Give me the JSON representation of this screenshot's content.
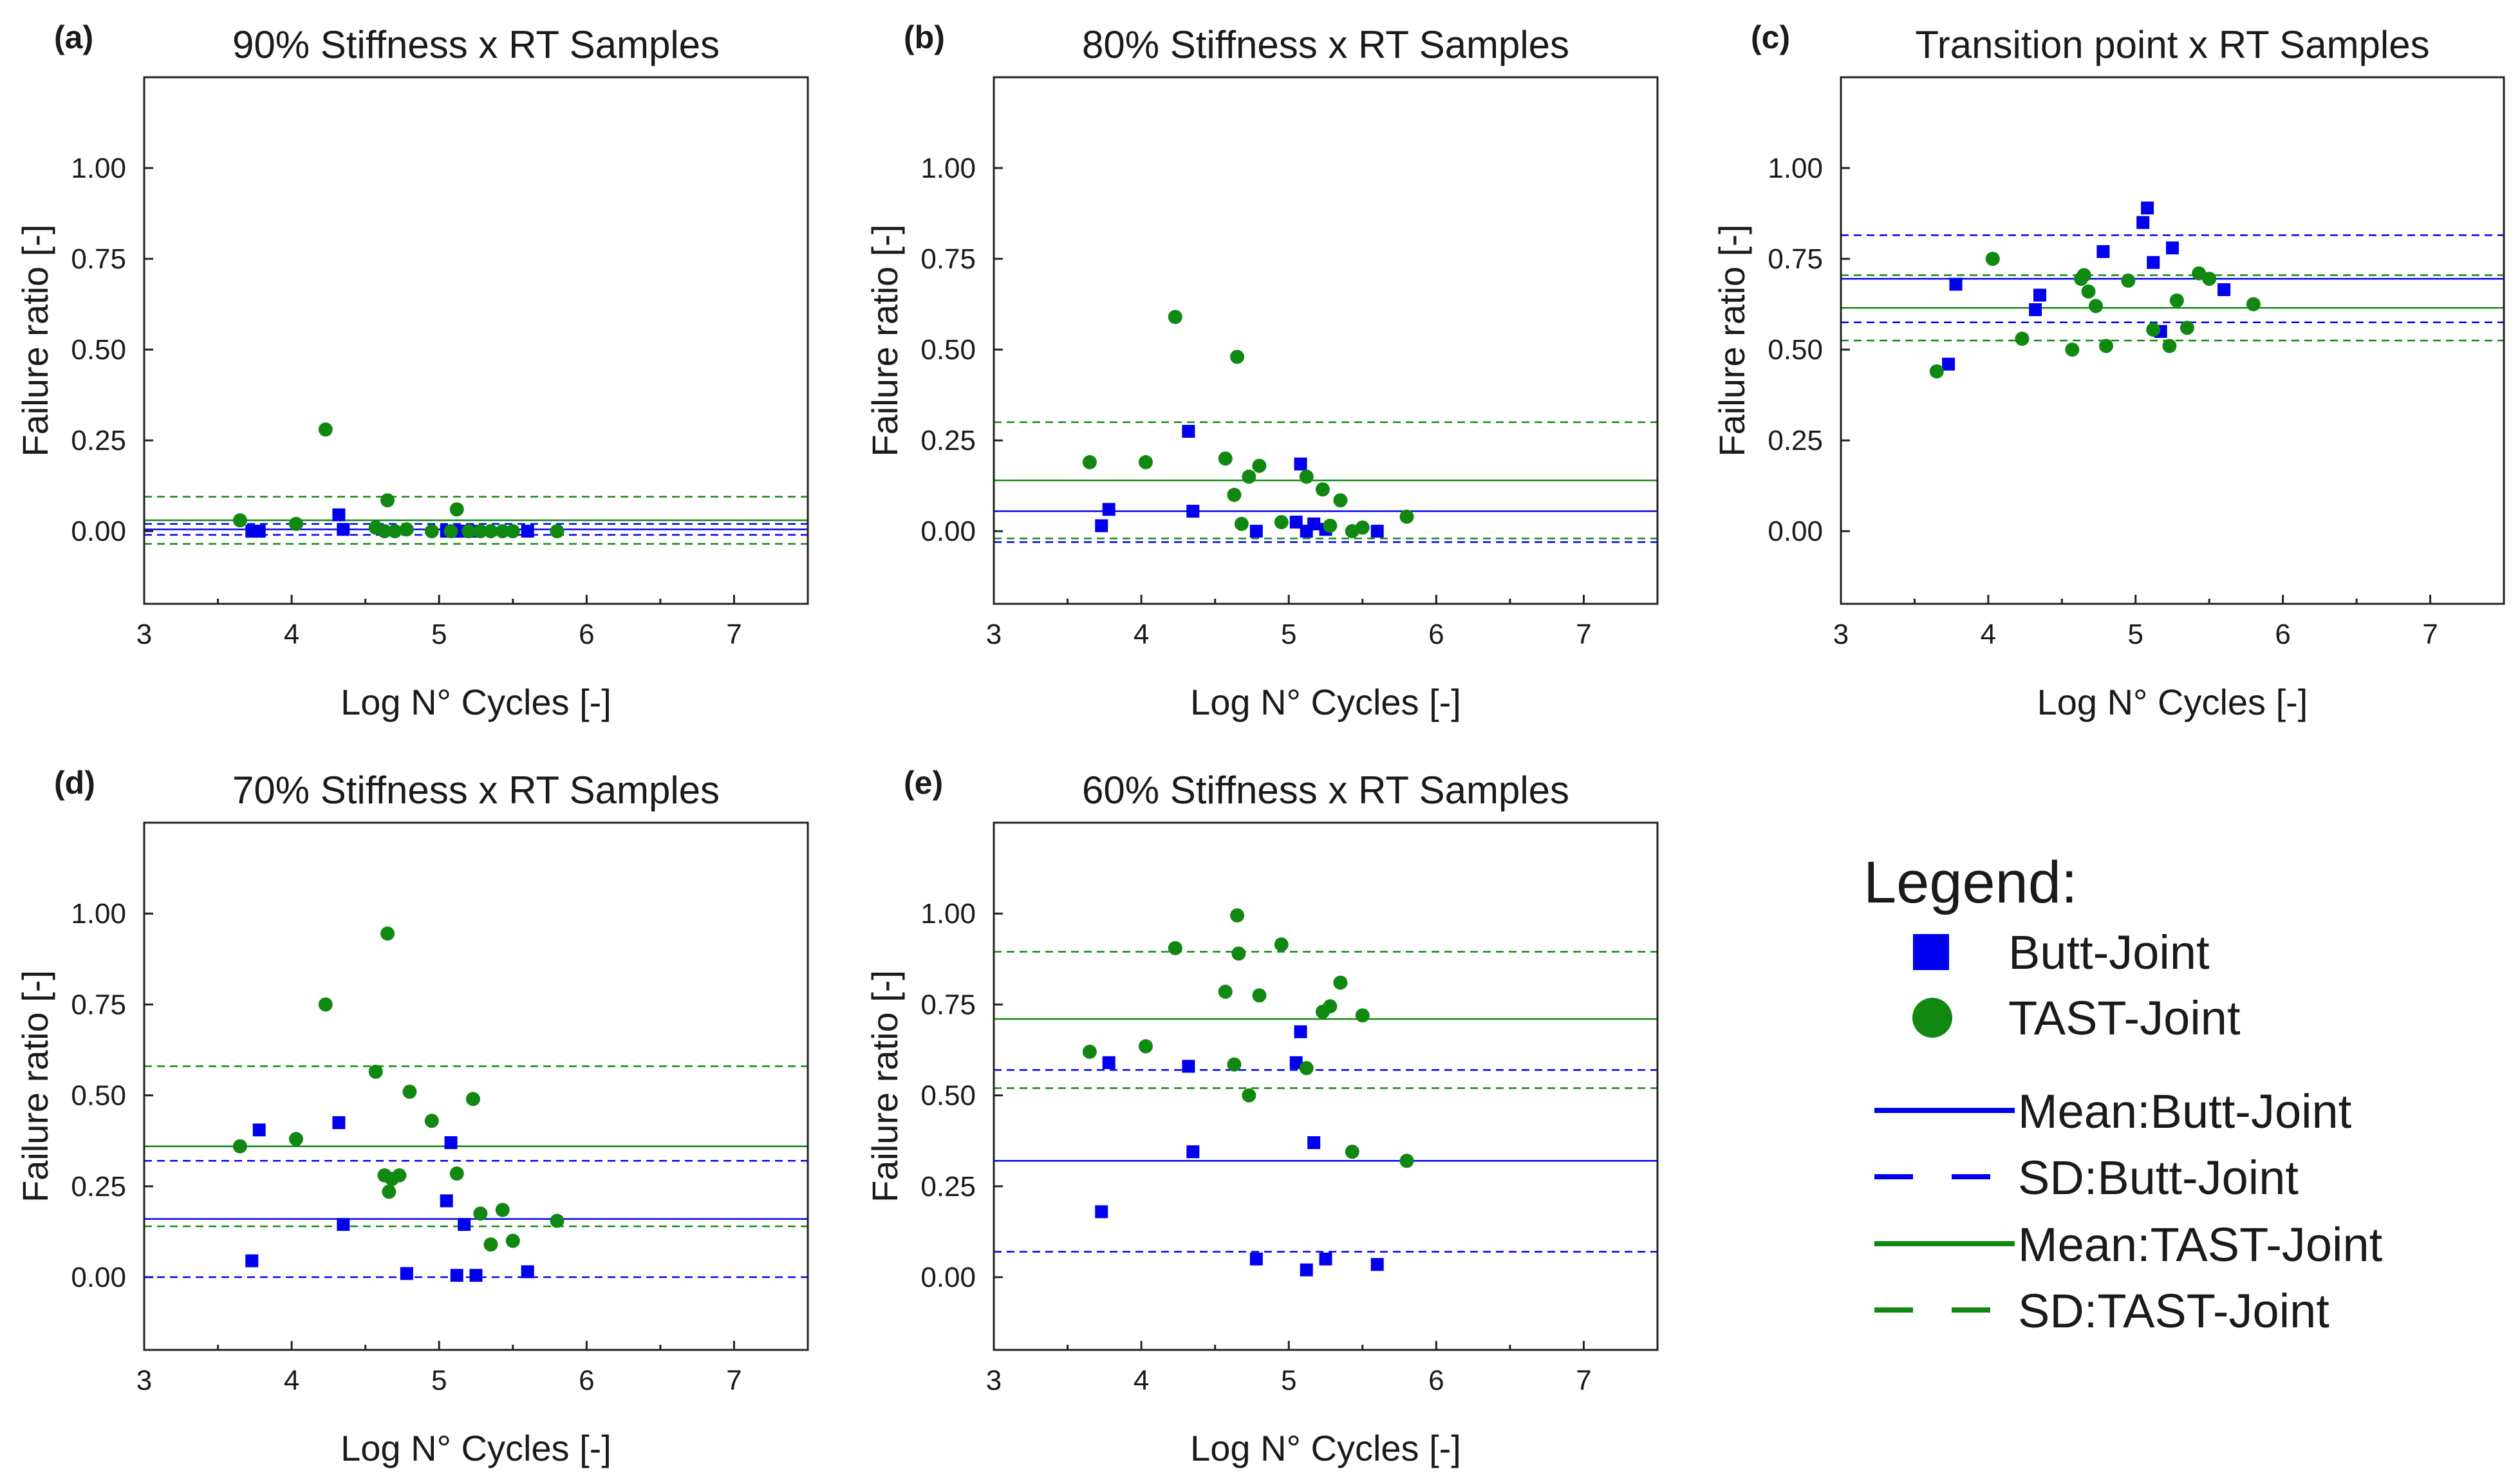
{
  "series_styles": {
    "butt": {
      "color": "#0000ee",
      "marker": "square"
    },
    "tast": {
      "color": "#118811",
      "marker": "circle"
    }
  },
  "legend": {
    "title": "Legend:",
    "entries": [
      {
        "label": "Butt-Joint",
        "kind": "square",
        "color": "#0000ee"
      },
      {
        "label": "TAST-Joint",
        "kind": "circle",
        "color": "#118811"
      },
      {
        "label": "Mean:Butt-Joint",
        "kind": "solid",
        "color": "#0000ee"
      },
      {
        "label": "SD:Butt-Joint",
        "kind": "dashed",
        "color": "#0000ee"
      },
      {
        "label": "Mean:TAST-Joint",
        "kind": "solid",
        "color": "#118811"
      },
      {
        "label": "SD:TAST-Joint",
        "kind": "dashed",
        "color": "#118811"
      }
    ]
  },
  "chart_data": [
    {
      "panel": "(a)",
      "type": "scatter",
      "title": "90% Stiffness x RT Samples",
      "xlabel": "Log N° Cycles [-]",
      "ylabel": "Failure ratio [-]",
      "xlim": [
        3,
        7.5
      ],
      "ylim": [
        -0.2,
        1.25
      ],
      "xticks": [
        3,
        4,
        5,
        6,
        7
      ],
      "xtick_labels": [
        "3",
        "4",
        "5",
        "6",
        "7"
      ],
      "yticks": [
        0,
        0.25,
        0.5,
        0.75,
        1.0
      ],
      "ytick_labels": [
        "0.00",
        "0.25",
        "0.50",
        "0.75",
        "1.00"
      ],
      "butt": {
        "x": [
          3.73,
          3.78,
          4.32,
          4.35,
          5.05,
          5.08,
          5.12,
          5.17,
          5.25,
          5.6
        ],
        "y": [
          0.0,
          0.0,
          0.045,
          0.005,
          0.0,
          0.0,
          0.0,
          0.0,
          0.0,
          0.0
        ]
      },
      "tast": {
        "x": [
          3.65,
          4.03,
          4.23,
          4.57,
          4.63,
          4.65,
          4.7,
          4.78,
          4.95,
          5.08,
          5.12,
          5.2,
          5.28,
          5.35,
          5.43,
          5.5,
          5.8
        ],
        "y": [
          0.03,
          0.02,
          0.28,
          0.01,
          0.0,
          0.085,
          0.0,
          0.005,
          0.0,
          0.0,
          0.06,
          0.0,
          0.0,
          0.0,
          0.0,
          0.0,
          0.0
        ]
      },
      "lines": {
        "mean_butt": 0.005,
        "sd_butt": [
          -0.01,
          0.02
        ],
        "mean_tast": 0.03,
        "sd_tast": [
          -0.035,
          0.095
        ]
      }
    },
    {
      "panel": "(b)",
      "type": "scatter",
      "title": "80% Stiffness x RT Samples",
      "xlabel": "Log N° Cycles [-]",
      "ylabel": "Failure ratio [-]",
      "xlim": [
        3,
        7.5
      ],
      "ylim": [
        -0.2,
        1.25
      ],
      "xticks": [
        3,
        4,
        5,
        6,
        7
      ],
      "xtick_labels": [
        "3",
        "4",
        "5",
        "6",
        "7"
      ],
      "yticks": [
        0,
        0.25,
        0.5,
        0.75,
        1.0
      ],
      "ytick_labels": [
        "0.00",
        "0.25",
        "0.50",
        "0.75",
        "1.00"
      ],
      "butt": {
        "x": [
          3.73,
          3.78,
          4.32,
          4.35,
          4.78,
          5.05,
          5.08,
          5.12,
          5.17,
          5.25,
          5.6
        ],
        "y": [
          0.015,
          0.06,
          0.275,
          0.055,
          0.0,
          0.025,
          0.185,
          0.0,
          0.02,
          0.005,
          0.0
        ]
      },
      "tast": {
        "x": [
          3.65,
          4.03,
          4.23,
          4.57,
          4.63,
          4.65,
          4.68,
          4.73,
          4.8,
          4.95,
          5.12,
          5.23,
          5.28,
          5.35,
          5.43,
          5.5,
          5.8
        ],
        "y": [
          0.19,
          0.19,
          0.59,
          0.2,
          0.1,
          0.48,
          0.02,
          0.15,
          0.18,
          0.025,
          0.15,
          0.115,
          0.015,
          0.085,
          0.0,
          0.01,
          0.04
        ]
      },
      "lines": {
        "mean_butt": 0.055,
        "sd_butt": [
          -0.03,
          0.14
        ],
        "mean_tast": 0.14,
        "sd_tast": [
          -0.02,
          0.3
        ]
      }
    },
    {
      "panel": "(c)",
      "type": "scatter",
      "title": "Transition point x RT Samples",
      "xlabel": "Log N° Cycles [-]",
      "ylabel": "Failure ratio [-]",
      "xlim": [
        3,
        7.5
      ],
      "ylim": [
        -0.2,
        1.25
      ],
      "xticks": [
        3,
        4,
        5,
        6,
        7
      ],
      "xtick_labels": [
        "3",
        "4",
        "5",
        "6",
        "7"
      ],
      "yticks": [
        0,
        0.25,
        0.5,
        0.75,
        1.0
      ],
      "ytick_labels": [
        "0.00",
        "0.25",
        "0.50",
        "0.75",
        "1.00"
      ],
      "butt": {
        "x": [
          3.73,
          3.78,
          4.32,
          4.35,
          4.78,
          5.05,
          5.08,
          5.12,
          5.17,
          5.25,
          5.6
        ],
        "y": [
          0.46,
          0.68,
          0.61,
          0.65,
          0.77,
          0.85,
          0.89,
          0.74,
          0.55,
          0.78,
          0.665
        ]
      },
      "tast": {
        "x": [
          3.65,
          4.03,
          4.23,
          4.57,
          4.63,
          4.65,
          4.68,
          4.73,
          4.8,
          4.95,
          5.12,
          5.23,
          5.28,
          5.35,
          5.43,
          5.5,
          5.8
        ],
        "y": [
          0.44,
          0.75,
          0.53,
          0.5,
          0.695,
          0.705,
          0.66,
          0.62,
          0.51,
          0.69,
          0.555,
          0.51,
          0.635,
          0.56,
          0.71,
          0.695,
          0.625
        ]
      },
      "lines": {
        "mean_butt": 0.695,
        "sd_butt": [
          0.575,
          0.815
        ],
        "mean_tast": 0.615,
        "sd_tast": [
          0.525,
          0.705
        ]
      }
    },
    {
      "panel": "(d)",
      "type": "scatter",
      "title": "70% Stiffness x RT Samples",
      "xlabel": "Log N° Cycles [-]",
      "ylabel": "Failure ratio [-]",
      "xlim": [
        3,
        7.5
      ],
      "ylim": [
        -0.2,
        1.25
      ],
      "xticks": [
        3,
        4,
        5,
        6,
        7
      ],
      "xtick_labels": [
        "3",
        "4",
        "5",
        "6",
        "7"
      ],
      "yticks": [
        0,
        0.25,
        0.5,
        0.75,
        1.0
      ],
      "ytick_labels": [
        "0.00",
        "0.25",
        "0.50",
        "0.75",
        "1.00"
      ],
      "butt": {
        "x": [
          3.73,
          3.78,
          4.32,
          4.35,
          4.78,
          5.05,
          5.08,
          5.12,
          5.17,
          5.25,
          5.6
        ],
        "y": [
          0.045,
          0.405,
          0.425,
          0.145,
          0.01,
          0.21,
          0.37,
          0.005,
          0.145,
          0.005,
          0.015
        ]
      },
      "tast": {
        "x": [
          3.65,
          4.03,
          4.23,
          4.57,
          4.63,
          4.65,
          4.66,
          4.68,
          4.73,
          4.8,
          4.95,
          5.12,
          5.23,
          5.28,
          5.35,
          5.43,
          5.5,
          5.8
        ],
        "y": [
          0.36,
          0.38,
          0.75,
          0.565,
          0.28,
          0.945,
          0.235,
          0.27,
          0.28,
          0.51,
          0.43,
          0.285,
          0.49,
          0.175,
          0.09,
          0.185,
          0.1,
          0.155
        ]
      },
      "lines": {
        "mean_butt": 0.16,
        "sd_butt": [
          0.0,
          0.32
        ],
        "mean_tast": 0.36,
        "sd_tast": [
          0.14,
          0.58
        ]
      }
    },
    {
      "panel": "(e)",
      "type": "scatter",
      "title": "60% Stiffness x RT Samples",
      "xlabel": "Log N° Cycles [-]",
      "ylabel": "Failure ratio [-]",
      "xlim": [
        3,
        7.5
      ],
      "ylim": [
        -0.2,
        1.25
      ],
      "xticks": [
        3,
        4,
        5,
        6,
        7
      ],
      "xtick_labels": [
        "3",
        "4",
        "5",
        "6",
        "7"
      ],
      "yticks": [
        0,
        0.25,
        0.5,
        0.75,
        1.0
      ],
      "ytick_labels": [
        "0.00",
        "0.25",
        "0.50",
        "0.75",
        "1.00"
      ],
      "butt": {
        "x": [
          3.73,
          3.78,
          4.32,
          4.35,
          4.78,
          5.05,
          5.08,
          5.12,
          5.17,
          5.25,
          5.6
        ],
        "y": [
          0.18,
          0.59,
          0.58,
          0.345,
          0.05,
          0.59,
          0.675,
          0.02,
          0.37,
          0.05,
          0.035
        ]
      },
      "tast": {
        "x": [
          3.65,
          4.03,
          4.23,
          4.57,
          4.63,
          4.65,
          4.66,
          4.73,
          4.8,
          4.95,
          5.12,
          5.23,
          5.28,
          5.35,
          5.43,
          5.5,
          5.8
        ],
        "y": [
          0.62,
          0.635,
          0.905,
          0.785,
          0.585,
          0.995,
          0.89,
          0.5,
          0.775,
          0.915,
          0.575,
          0.73,
          0.745,
          0.81,
          0.345,
          0.72,
          0.32
        ]
      },
      "lines": {
        "mean_butt": 0.32,
        "sd_butt": [
          0.07,
          0.57
        ],
        "mean_tast": 0.71,
        "sd_tast": [
          0.52,
          0.895
        ]
      }
    }
  ]
}
